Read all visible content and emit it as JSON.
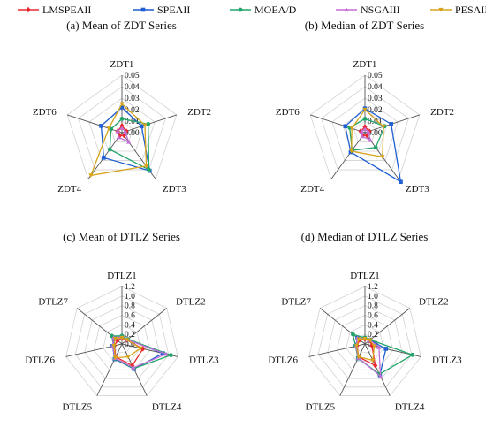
{
  "legend": [
    {
      "name": "LMSPEAII",
      "color": "#e8282e",
      "marker": "diamond"
    },
    {
      "name": "SPEAII",
      "color": "#1f5fd1",
      "marker": "square"
    },
    {
      "name": "MOEA/D",
      "color": "#22a56a",
      "marker": "circle"
    },
    {
      "name": "NSGAIII",
      "color": "#c46fd6",
      "marker": "triangle-up"
    },
    {
      "name": "PESAII",
      "color": "#d6a31a",
      "marker": "triangle-down"
    }
  ],
  "chart_data": [
    {
      "type": "radar",
      "title": "(a) Mean of ZDT Series",
      "categories": [
        "ZDT1",
        "ZDT2",
        "ZDT3",
        "ZDT4",
        "ZDT6"
      ],
      "ticks": [
        "0.05",
        "0.04",
        "0.03",
        "0.02",
        "0.01",
        "0.00"
      ],
      "rlim": [
        0,
        0.05
      ],
      "series": [
        {
          "name": "LMSPEAII",
          "values": [
            0.006,
            0.004,
            0.003,
            0.003,
            0.004
          ]
        },
        {
          "name": "SPEAII",
          "values": [
            0.022,
            0.018,
            0.041,
            0.027,
            0.019
          ]
        },
        {
          "name": "MOEA/D",
          "values": [
            0.012,
            0.024,
            0.04,
            0.018,
            0.01
          ]
        },
        {
          "name": "NSGAIII",
          "values": [
            0.004,
            0.003,
            0.01,
            0.005,
            0.004
          ]
        },
        {
          "name": "PESAII",
          "values": [
            0.025,
            0.021,
            0.036,
            0.046,
            0.012
          ]
        }
      ]
    },
    {
      "type": "radar",
      "title": "(b) Median of ZDT Series",
      "categories": [
        "ZDT1",
        "ZDT2",
        "ZDT3",
        "ZDT4",
        "ZDT6"
      ],
      "ticks": [
        "0.05",
        "0.04",
        "0.03",
        "0.02",
        "0.01",
        "0.00"
      ],
      "rlim": [
        0,
        0.05
      ],
      "series": [
        {
          "name": "LMSPEAII",
          "values": [
            0.005,
            0.004,
            0.003,
            0.003,
            0.004
          ]
        },
        {
          "name": "SPEAII",
          "values": [
            0.021,
            0.024,
            0.053,
            0.021,
            0.018
          ]
        },
        {
          "name": "MOEA/D",
          "values": [
            0.012,
            0.018,
            0.016,
            0.019,
            0.014
          ]
        },
        {
          "name": "NSGAIII",
          "values": [
            0.003,
            0.003,
            0.008,
            0.004,
            0.003
          ]
        },
        {
          "name": "PESAII",
          "values": [
            0.02,
            0.017,
            0.026,
            0.02,
            0.012
          ]
        }
      ]
    },
    {
      "type": "radar",
      "title": "(c) Mean of DTLZ Series",
      "categories": [
        "DTLZ1",
        "DTLZ2",
        "DTLZ3",
        "DTLZ4",
        "DTLZ5",
        "DTLZ6",
        "DTLZ7"
      ],
      "ticks": [
        "1.2",
        "1.0",
        "0.8",
        "0.6",
        "0.4",
        "0.2",
        "0.0"
      ],
      "rlim": [
        0,
        1.2
      ],
      "series": [
        {
          "name": "LMSPEAII",
          "values": [
            0.12,
            0.13,
            0.45,
            0.5,
            0.3,
            0.16,
            0.12
          ]
        },
        {
          "name": "SPEAII",
          "values": [
            0.15,
            0.15,
            0.88,
            0.58,
            0.35,
            0.2,
            0.2
          ]
        },
        {
          "name": "MOEA/D",
          "values": [
            0.17,
            0.16,
            1.05,
            0.57,
            0.34,
            0.18,
            0.27
          ]
        },
        {
          "name": "NSGAIII",
          "values": [
            0.14,
            0.14,
            0.95,
            0.55,
            0.33,
            0.2,
            0.22
          ]
        },
        {
          "name": "PESAII",
          "values": [
            0.13,
            0.14,
            0.4,
            0.3,
            0.32,
            0.17,
            0.18
          ]
        }
      ]
    },
    {
      "type": "radar",
      "title": "(d) Median of DTLZ Series",
      "categories": [
        "DTLZ1",
        "DTLZ2",
        "DTLZ3",
        "DTLZ4",
        "DTLZ5",
        "DTLZ6",
        "DTLZ7"
      ],
      "ticks": [
        "1.2",
        "1.0",
        "0.8",
        "0.6",
        "0.4",
        "0.2",
        "0.0"
      ],
      "rlim": [
        0,
        1.2
      ],
      "series": [
        {
          "name": "LMSPEAII",
          "values": [
            0.1,
            0.12,
            0.15,
            0.5,
            0.3,
            0.17,
            0.14
          ]
        },
        {
          "name": "SPEAII",
          "values": [
            0.12,
            0.13,
            0.45,
            0.72,
            0.33,
            0.2,
            0.2
          ]
        },
        {
          "name": "MOEA/D",
          "values": [
            0.13,
            0.14,
            1.02,
            0.7,
            0.33,
            0.2,
            0.32
          ]
        },
        {
          "name": "NSGAIII",
          "values": [
            0.11,
            0.13,
            0.3,
            0.75,
            0.32,
            0.19,
            0.2
          ]
        },
        {
          "name": "PESAII",
          "values": [
            0.11,
            0.13,
            0.2,
            0.38,
            0.3,
            0.18,
            0.16
          ]
        }
      ]
    }
  ]
}
